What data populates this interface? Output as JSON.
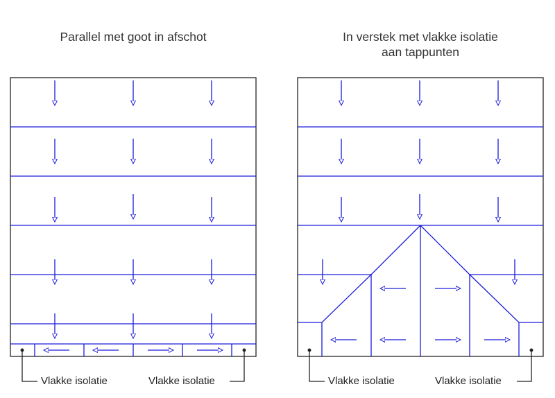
{
  "left_panel": {
    "title": "Parallel met goot in afschot",
    "callout_left": "Vlakke isolatie",
    "callout_right": "Vlakke isolatie"
  },
  "right_panel": {
    "title_line1": "In verstek met vlakke isolatie",
    "title_line2": "aan tappunten",
    "callout_left": "Vlakke isolatie",
    "callout_right": "Vlakke isolatie"
  },
  "colors": {
    "outline": "#222222",
    "layout_lines": "#1a1adb",
    "text": "#333333"
  }
}
